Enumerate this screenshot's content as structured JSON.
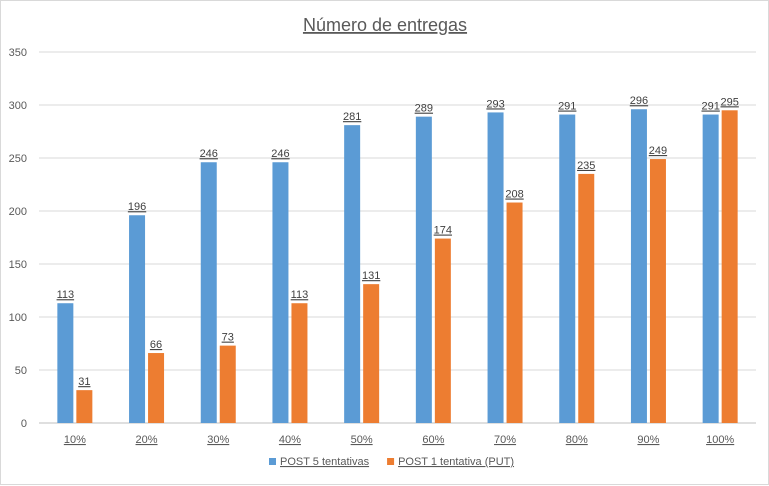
{
  "chart_data": {
    "type": "bar",
    "title": "Número de entregas",
    "xlabel": "",
    "ylabel": "",
    "ylim": [
      0,
      350
    ],
    "yticks": [
      0,
      50,
      100,
      150,
      200,
      250,
      300,
      350
    ],
    "ytick_labels": [
      "0",
      "50",
      "100",
      "150",
      "200",
      "250",
      "300",
      "350"
    ],
    "grid": true,
    "legend_position": "bottom",
    "categories": [
      "10%",
      "20%",
      "30%",
      "40%",
      "50%",
      "60%",
      "70%",
      "80%",
      "90%",
      "100%"
    ],
    "series": [
      {
        "name": "POST 5 tentativas",
        "color": "#5b9bd5",
        "values": [
          113,
          196,
          246,
          246,
          281,
          289,
          293,
          291,
          296,
          291
        ],
        "labels": [
          "113",
          "196",
          "246",
          "246",
          "281",
          "289",
          "293",
          "291",
          "296",
          "291"
        ]
      },
      {
        "name": "POST 1 tentativa (PUT)",
        "color": "#ed7d31",
        "values": [
          31,
          66,
          73,
          113,
          131,
          174,
          208,
          235,
          249,
          295
        ],
        "labels": [
          "31",
          "66",
          "73",
          "113",
          "131",
          "174",
          "208",
          "235",
          "249",
          "295"
        ]
      }
    ]
  }
}
